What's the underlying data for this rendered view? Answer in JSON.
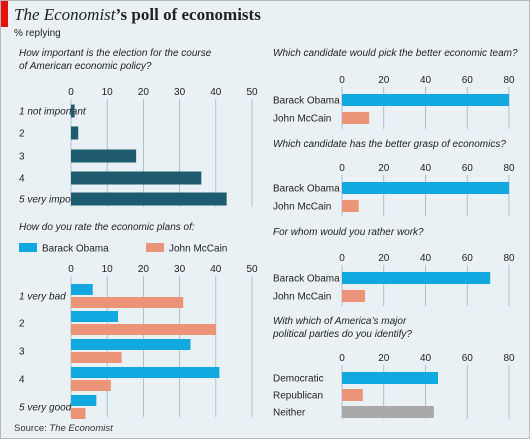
{
  "header": {
    "title_em": "The Economist",
    "title_rest": "’s poll of economists",
    "subtitle": "% replying",
    "source_label": "Source:",
    "source_name": "The Economist"
  },
  "legend": [
    {
      "name": "Barack Obama",
      "color": "#12a9e0"
    },
    {
      "name": "John McCain",
      "color": "#ec9477"
    }
  ],
  "chart_data": [
    {
      "type": "bar",
      "title": "How important is the election for the course of American economic policy?",
      "title_lines": [
        "How important is the election for the course",
        "of American economic policy?"
      ],
      "categories": [
        "1 not important",
        "2",
        "3",
        "4",
        "5 very important"
      ],
      "category_italic": [
        true,
        false,
        false,
        false,
        true
      ],
      "series": [
        {
          "values": [
            1,
            2,
            18,
            36,
            43
          ],
          "color": "#1f5b6e"
        }
      ],
      "xlim": [
        0,
        50
      ],
      "ticks": [
        0,
        10,
        20,
        30,
        40,
        50
      ],
      "grid": true
    },
    {
      "type": "bar",
      "title": "How do you rate the economic plans of:",
      "title_lines": [
        "How do you rate the economic plans of:"
      ],
      "categories": [
        "1 very bad",
        "2",
        "3",
        "4",
        "5 very good"
      ],
      "category_italic": [
        true,
        false,
        false,
        false,
        true
      ],
      "series": [
        {
          "name": "Barack Obama",
          "values": [
            6,
            13,
            33,
            41,
            7
          ],
          "color": "#12a9e0"
        },
        {
          "name": "John McCain",
          "values": [
            31,
            40,
            14,
            11,
            4
          ],
          "color": "#ec9477"
        }
      ],
      "xlim": [
        0,
        50
      ],
      "ticks": [
        0,
        10,
        20,
        30,
        40,
        50
      ],
      "grid": true
    },
    {
      "type": "bar",
      "title": "Which candidate would pick the better economic team?",
      "title_lines": [
        "Which candidate would pick the better economic team?"
      ],
      "categories": [
        "Barack Obama",
        "John McCain"
      ],
      "series": [
        {
          "values": [
            80,
            13
          ],
          "colors": [
            "#12a9e0",
            "#ec9477"
          ]
        }
      ],
      "xlim": [
        0,
        80
      ],
      "ticks": [
        0,
        20,
        40,
        60,
        80
      ],
      "grid": true
    },
    {
      "type": "bar",
      "title": "Which candidate has the better grasp of economics?",
      "title_lines": [
        "Which candidate has the better grasp of economics?"
      ],
      "categories": [
        "Barack Obama",
        "John McCain"
      ],
      "series": [
        {
          "values": [
            80,
            8
          ],
          "colors": [
            "#12a9e0",
            "#ec9477"
          ]
        }
      ],
      "xlim": [
        0,
        80
      ],
      "ticks": [
        0,
        20,
        40,
        60,
        80
      ],
      "grid": true
    },
    {
      "type": "bar",
      "title": "For whom would you rather work?",
      "title_lines": [
        "For whom would you rather work?"
      ],
      "categories": [
        "Barack Obama",
        "John McCain"
      ],
      "series": [
        {
          "values": [
            71,
            11
          ],
          "colors": [
            "#12a9e0",
            "#ec9477"
          ]
        }
      ],
      "xlim": [
        0,
        80
      ],
      "ticks": [
        0,
        20,
        40,
        60,
        80
      ],
      "grid": true
    },
    {
      "type": "bar",
      "title": "With which of America’s major political parties do you identify?",
      "title_lines": [
        "With which of America’s major",
        "political parties do you identify?"
      ],
      "categories": [
        "Democratic",
        "Republican",
        "Neither"
      ],
      "series": [
        {
          "values": [
            46,
            10,
            44
          ],
          "colors": [
            "#12a9e0",
            "#ec9477",
            "#a9a9a9"
          ]
        }
      ],
      "xlim": [
        0,
        80
      ],
      "ticks": [
        0,
        20,
        40,
        60,
        80
      ],
      "grid": true
    }
  ]
}
